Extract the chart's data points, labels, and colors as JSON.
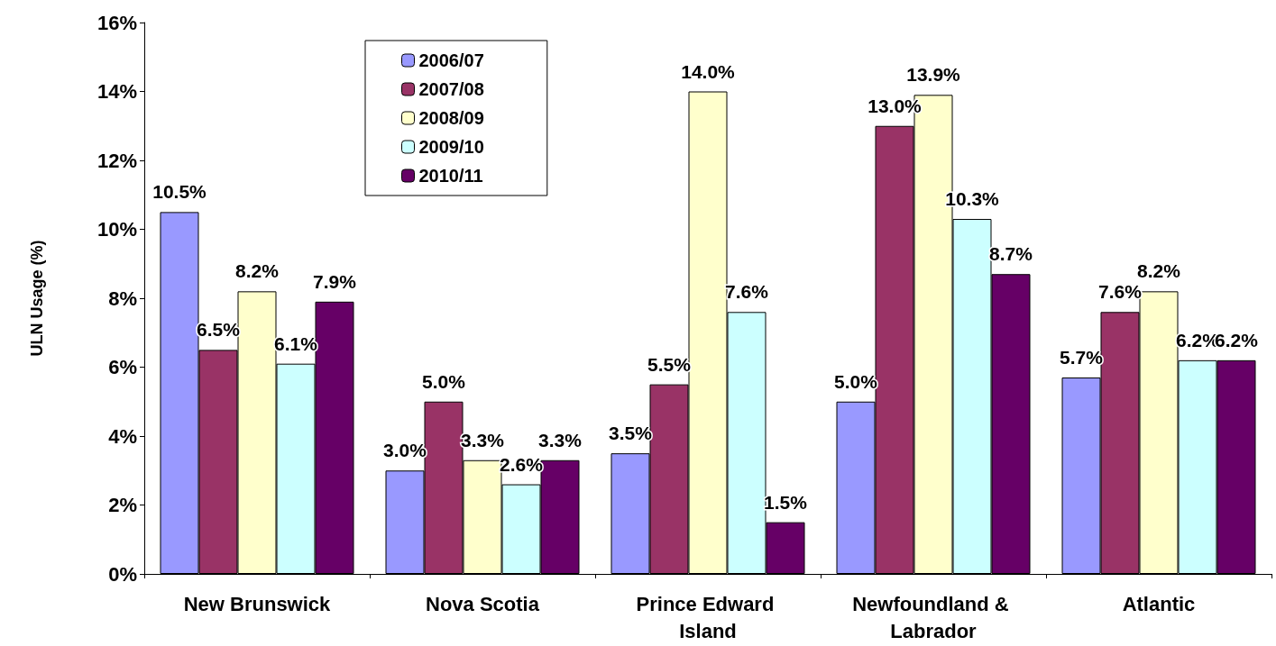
{
  "chart_data": {
    "type": "bar",
    "ylabel": "ULN Usage (%)",
    "categories": [
      "New Brunswick",
      "Nova Scotia",
      "Prince Edward Island",
      "Newfoundland & Labrador",
      "Atlantic"
    ],
    "series": [
      {
        "name": "2006/07",
        "color": "#9999ff",
        "values": [
          10.5,
          3.0,
          3.5,
          5.0,
          5.7
        ],
        "value_labels": [
          "10.5%",
          "3.0%",
          "3.5%",
          "5.0%",
          "5.7%"
        ]
      },
      {
        "name": "2007/08",
        "color": "#993366",
        "values": [
          6.5,
          5.0,
          5.5,
          13.0,
          7.6
        ],
        "value_labels": [
          "6.5%",
          "5.0%",
          "5.5%",
          "13.0%",
          "7.6%"
        ]
      },
      {
        "name": "2008/09",
        "color": "#ffffcc",
        "values": [
          8.2,
          3.3,
          14.0,
          13.9,
          8.2
        ],
        "value_labels": [
          "8.2%",
          "3.3%",
          "14.0%",
          "13.9%",
          "8.2%"
        ]
      },
      {
        "name": "2009/10",
        "color": "#ccffff",
        "values": [
          6.1,
          2.6,
          7.6,
          10.3,
          6.2
        ],
        "value_labels": [
          "6.1%",
          "2.6%",
          "7.6%",
          "10.3%",
          "6.2%"
        ]
      },
      {
        "name": "2010/11",
        "color": "#660066",
        "values": [
          7.9,
          3.3,
          1.5,
          8.7,
          6.2
        ],
        "value_labels": [
          "7.9%",
          "3.3%",
          "1.5%",
          "8.7%",
          "6.2%"
        ]
      }
    ],
    "ylim": [
      0,
      16
    ],
    "yticks": [
      {
        "value": 0,
        "label": "0%"
      },
      {
        "value": 2,
        "label": "2%"
      },
      {
        "value": 4,
        "label": "4%"
      },
      {
        "value": 6,
        "label": "6%"
      },
      {
        "value": 8,
        "label": "8%"
      },
      {
        "value": 10,
        "label": "10%"
      },
      {
        "value": 12,
        "label": "12%"
      },
      {
        "value": 14,
        "label": "14%"
      },
      {
        "value": 16,
        "label": "16%"
      }
    ],
    "grid": false,
    "legend": "top"
  }
}
